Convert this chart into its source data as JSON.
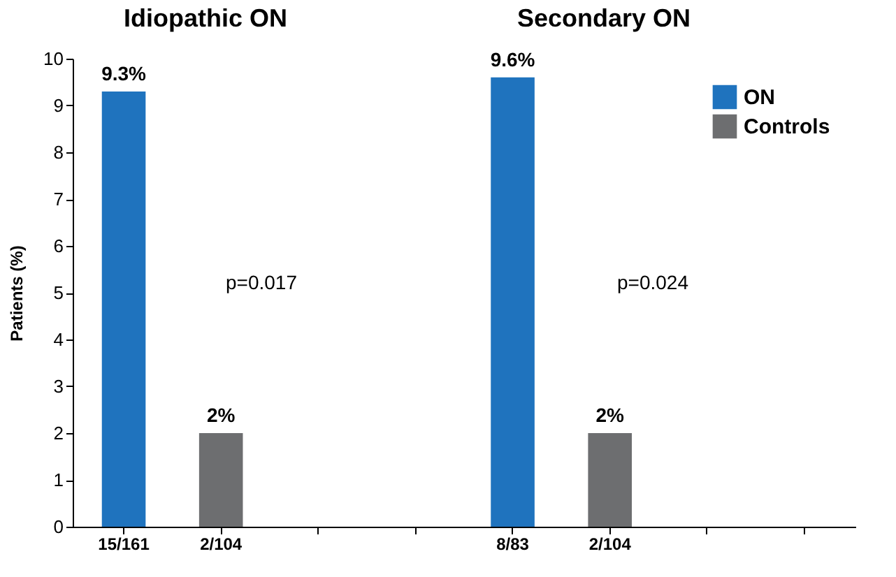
{
  "chart_data": {
    "type": "bar",
    "ylabel": "Patients (%)",
    "categories": [
      "15/161",
      "2/104",
      null,
      null,
      "8/83",
      "2/104",
      null,
      null
    ],
    "series": [
      {
        "name": "ON",
        "color": "#1f73be",
        "values": [
          9.3,
          null,
          null,
          null,
          9.6,
          null,
          null,
          null
        ],
        "value_labels": [
          "9.3%",
          null,
          null,
          null,
          "9.6%",
          null,
          null,
          null
        ]
      },
      {
        "name": "Controls",
        "color": "#6d6e70",
        "values": [
          null,
          2,
          null,
          null,
          null,
          2,
          null,
          null
        ],
        "value_labels": [
          null,
          "2%",
          null,
          null,
          null,
          "2%",
          null,
          null
        ]
      }
    ],
    "ylim": [
      0,
      10
    ],
    "yticks": [
      0,
      1,
      2,
      3,
      4,
      5,
      6,
      7,
      8,
      9,
      10
    ],
    "grid": false,
    "legend": "top right",
    "annotations": [
      "Idiopathic ON",
      "Secondary ON",
      "p=0.017",
      "p=0.024"
    ]
  }
}
